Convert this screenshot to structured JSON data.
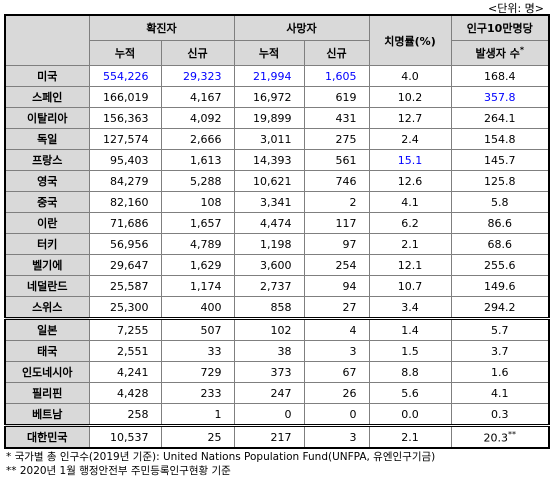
{
  "unit": "<단위: 명>",
  "header": {
    "confirmed": "확진자",
    "deaths": "사망자",
    "cumulative": "누적",
    "new": "신규",
    "fatality": "치명률(%)",
    "per100k": {
      "line1": "인구10만명당",
      "line2": "발생자 수",
      "mark": "*"
    }
  },
  "table": {
    "rows": [
      {
        "name": "미국",
        "cells": [
          "554,226",
          "29,323",
          "21,994",
          "1,605",
          "4.0",
          "168.4"
        ]
      },
      {
        "name": "스페인",
        "cells": [
          "166,019",
          "4,167",
          "16,972",
          "619",
          "10.2",
          "357.8"
        ]
      },
      {
        "name": "이탈리아",
        "cells": [
          "156,363",
          "4,092",
          "19,899",
          "431",
          "12.7",
          "264.1"
        ]
      },
      {
        "name": "독일",
        "cells": [
          "127,574",
          "2,666",
          "3,011",
          "275",
          "2.4",
          "154.8"
        ]
      },
      {
        "name": "프랑스",
        "cells": [
          "95,403",
          "1,613",
          "14,393",
          "561",
          "15.1",
          "145.7"
        ]
      },
      {
        "name": "영국",
        "cells": [
          "84,279",
          "5,288",
          "10,621",
          "746",
          "12.6",
          "125.8"
        ]
      },
      {
        "name": "중국",
        "cells": [
          "82,160",
          "108",
          "3,341",
          "2",
          "4.1",
          "5.8"
        ]
      },
      {
        "name": "이란",
        "cells": [
          "71,686",
          "1,657",
          "4,474",
          "117",
          "6.2",
          "86.6"
        ]
      },
      {
        "name": "터키",
        "cells": [
          "56,956",
          "4,789",
          "1,198",
          "97",
          "2.1",
          "68.6"
        ]
      },
      {
        "name": "벨기에",
        "cells": [
          "29,647",
          "1,629",
          "3,600",
          "254",
          "12.1",
          "255.6"
        ]
      },
      {
        "name": "네덜란드",
        "cells": [
          "25,587",
          "1,174",
          "2,737",
          "94",
          "10.7",
          "149.6"
        ]
      },
      {
        "name": "스위스",
        "cells": [
          "25,300",
          "400",
          "858",
          "27",
          "3.4",
          "294.2"
        ]
      },
      {
        "name": "일본",
        "cells": [
          "7,255",
          "507",
          "102",
          "4",
          "1.4",
          "5.7"
        ]
      },
      {
        "name": "태국",
        "cells": [
          "2,551",
          "33",
          "38",
          "3",
          "1.5",
          "3.7"
        ]
      },
      {
        "name": "인도네시아",
        "cells": [
          "4,241",
          "729",
          "373",
          "67",
          "8.8",
          "1.6"
        ]
      },
      {
        "name": "필리핀",
        "cells": [
          "4,428",
          "233",
          "247",
          "26",
          "5.6",
          "4.1"
        ]
      },
      {
        "name": "베트남",
        "cells": [
          "258",
          "1",
          "0",
          "0",
          "0.0",
          "0.3"
        ]
      },
      {
        "name": "대한민국",
        "cells": [
          "10,537",
          "25",
          "217",
          "3",
          "2.1",
          "20.3"
        ],
        "mark": "**"
      }
    ]
  },
  "footnotes": [
    "* 국가별 총 인구수(2019년 기준): United Nations Population Fund(UNFPA, 유엔인구기금)",
    "** 2020년 1월 행정안전부 주민등록인구현황 기준"
  ]
}
